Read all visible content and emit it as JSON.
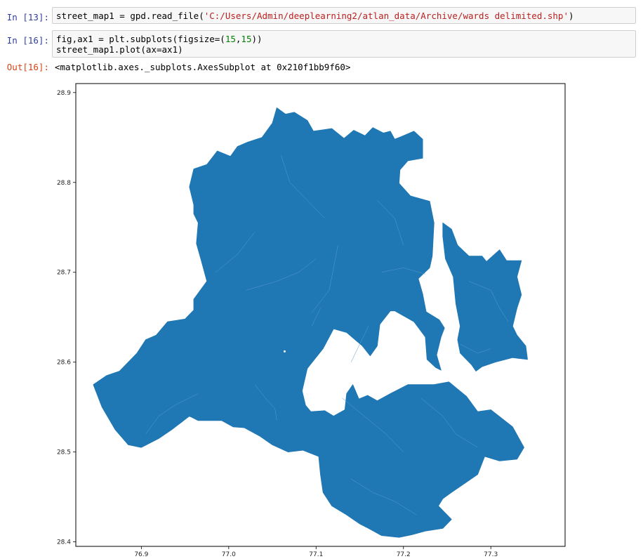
{
  "cells": [
    {
      "in_prompt": "In [13]:",
      "code_parts": [
        {
          "text": "street_map1 = gpd.read_file(",
          "type": "plain"
        },
        {
          "text": "'C:/Users/Admin/deeplearning2/atlan_data/Archive/wards delimited.shp'",
          "type": "string"
        },
        {
          "text": ")",
          "type": "plain"
        }
      ]
    },
    {
      "in_prompt": "In [16]:",
      "line1_parts": [
        {
          "text": "fig,ax1 = plt.subplots(figsize=(",
          "type": "plain"
        },
        {
          "text": "15",
          "type": "number"
        },
        {
          "text": ",",
          "type": "plain"
        },
        {
          "text": "15",
          "type": "number"
        },
        {
          "text": "))",
          "type": "plain"
        }
      ],
      "line2": "street_map1.plot(ax=ax1)",
      "out_prompt": "Out[16]:",
      "output_text": "<matplotlib.axes._subplots.AxesSubplot at 0x210f1bb9f60>"
    }
  ],
  "chart_data": {
    "type": "map",
    "title": "",
    "xlabel": "",
    "ylabel": "",
    "xlim": [
      76.825,
      77.385
    ],
    "ylim": [
      28.395,
      28.91
    ],
    "x_ticks": [
      "76.9",
      "77.0",
      "77.1",
      "77.2",
      "77.3"
    ],
    "y_ticks": [
      "28.9",
      "28.8",
      "28.7",
      "28.6",
      "28.5",
      "28.4"
    ],
    "fill_color": "#1f77b4",
    "edge_color": "#5b9bd0",
    "grid": false,
    "legend": "none",
    "regions": [
      {
        "name": "main",
        "coords": [
          [
            77.055,
            28.883
          ],
          [
            77.065,
            28.876
          ],
          [
            77.075,
            28.878
          ],
          [
            77.09,
            28.869
          ],
          [
            77.097,
            28.857
          ],
          [
            77.118,
            28.86
          ],
          [
            77.132,
            28.849
          ],
          [
            77.143,
            28.858
          ],
          [
            77.156,
            28.852
          ],
          [
            77.165,
            28.861
          ],
          [
            77.177,
            28.855
          ],
          [
            77.185,
            28.857
          ],
          [
            77.19,
            28.848
          ],
          [
            77.2,
            28.852
          ],
          [
            77.212,
            28.857
          ],
          [
            77.222,
            28.848
          ],
          [
            77.222,
            28.827
          ],
          [
            77.205,
            28.824
          ],
          [
            77.196,
            28.814
          ],
          [
            77.195,
            28.799
          ],
          [
            77.208,
            28.785
          ],
          [
            77.23,
            28.779
          ],
          [
            77.235,
            28.755
          ],
          [
            77.233,
            28.718
          ],
          [
            77.23,
            28.705
          ],
          [
            77.217,
            28.693
          ],
          [
            77.222,
            28.676
          ],
          [
            77.226,
            28.656
          ],
          [
            77.241,
            28.647
          ],
          [
            77.247,
            28.638
          ],
          [
            77.243,
            28.628
          ],
          [
            77.238,
            28.608
          ],
          [
            77.243,
            28.591
          ],
          [
            77.237,
            28.594
          ],
          [
            77.227,
            28.603
          ],
          [
            77.225,
            28.628
          ],
          [
            77.212,
            28.645
          ],
          [
            77.19,
            28.657
          ],
          [
            77.185,
            28.657
          ],
          [
            77.173,
            28.642
          ],
          [
            77.17,
            28.618
          ],
          [
            77.162,
            28.607
          ],
          [
            77.153,
            28.618
          ],
          [
            77.135,
            28.633
          ],
          [
            77.12,
            28.637
          ],
          [
            77.108,
            28.615
          ],
          [
            77.09,
            28.593
          ],
          [
            77.084,
            28.568
          ],
          [
            77.088,
            28.552
          ],
          [
            77.094,
            28.545
          ],
          [
            77.11,
            28.546
          ],
          [
            77.12,
            28.54
          ],
          [
            77.133,
            28.547
          ],
          [
            77.135,
            28.565
          ],
          [
            77.142,
            28.575
          ],
          [
            77.149,
            28.559
          ],
          [
            77.159,
            28.563
          ],
          [
            77.17,
            28.557
          ],
          [
            77.185,
            28.565
          ],
          [
            77.205,
            28.575
          ],
          [
            77.225,
            28.575
          ],
          [
            77.235,
            28.575
          ],
          [
            77.252,
            28.578
          ],
          [
            77.272,
            28.562
          ],
          [
            77.285,
            28.545
          ],
          [
            77.3,
            28.547
          ],
          [
            77.325,
            28.528
          ],
          [
            77.338,
            28.505
          ],
          [
            77.33,
            28.492
          ],
          [
            77.31,
            28.49
          ],
          [
            77.293,
            28.495
          ],
          [
            77.285,
            28.475
          ],
          [
            77.27,
            28.465
          ],
          [
            77.255,
            28.455
          ],
          [
            77.245,
            28.448
          ],
          [
            77.24,
            28.44
          ],
          [
            77.25,
            28.43
          ],
          [
            77.255,
            28.425
          ],
          [
            77.245,
            28.415
          ],
          [
            77.225,
            28.412
          ],
          [
            77.21,
            28.408
          ],
          [
            77.195,
            28.405
          ],
          [
            77.175,
            28.407
          ],
          [
            77.16,
            28.415
          ],
          [
            77.15,
            28.42
          ],
          [
            77.135,
            28.43
          ],
          [
            77.118,
            28.44
          ],
          [
            77.108,
            28.455
          ],
          [
            77.105,
            28.475
          ],
          [
            77.103,
            28.495
          ],
          [
            77.085,
            28.502
          ],
          [
            77.068,
            28.5
          ],
          [
            77.05,
            28.508
          ],
          [
            77.035,
            28.518
          ],
          [
            77.018,
            28.527
          ],
          [
            77.005,
            28.528
          ],
          [
            76.992,
            28.535
          ],
          [
            76.965,
            28.535
          ],
          [
            76.955,
            28.54
          ],
          [
            76.935,
            28.525
          ],
          [
            76.92,
            28.515
          ],
          [
            76.91,
            28.51
          ],
          [
            76.9,
            28.505
          ],
          [
            76.885,
            28.508
          ],
          [
            76.87,
            28.525
          ],
          [
            76.855,
            28.55
          ],
          [
            76.845,
            28.575
          ],
          [
            76.86,
            28.585
          ],
          [
            76.875,
            28.59
          ],
          [
            76.895,
            28.61
          ],
          [
            76.905,
            28.625
          ],
          [
            76.917,
            28.63
          ],
          [
            76.93,
            28.645
          ],
          [
            76.95,
            28.648
          ],
          [
            76.96,
            28.658
          ],
          [
            76.96,
            28.67
          ],
          [
            76.975,
            28.69
          ],
          [
            76.968,
            28.715
          ],
          [
            76.963,
            28.732
          ],
          [
            76.965,
            28.755
          ],
          [
            76.96,
            28.765
          ],
          [
            76.96,
            28.775
          ],
          [
            76.955,
            28.795
          ],
          [
            76.96,
            28.815
          ],
          [
            76.975,
            28.82
          ],
          [
            76.987,
            28.835
          ],
          [
            77.002,
            28.829
          ],
          [
            77.01,
            28.84
          ],
          [
            77.022,
            28.845
          ],
          [
            77.038,
            28.85
          ],
          [
            77.05,
            28.866
          ]
        ]
      },
      {
        "name": "east",
        "coords": [
          [
            77.245,
            28.755
          ],
          [
            77.255,
            28.748
          ],
          [
            77.262,
            28.73
          ],
          [
            77.275,
            28.718
          ],
          [
            77.29,
            28.718
          ],
          [
            77.295,
            28.712
          ],
          [
            77.31,
            28.725
          ],
          [
            77.318,
            28.713
          ],
          [
            77.335,
            28.713
          ],
          [
            77.33,
            28.695
          ],
          [
            77.335,
            28.675
          ],
          [
            77.33,
            28.66
          ],
          [
            77.325,
            28.64
          ],
          [
            77.33,
            28.63
          ],
          [
            77.34,
            28.618
          ],
          [
            77.342,
            28.603
          ],
          [
            77.325,
            28.605
          ],
          [
            77.305,
            28.6
          ],
          [
            77.29,
            28.595
          ],
          [
            77.283,
            28.59
          ],
          [
            77.278,
            28.597
          ],
          [
            77.265,
            28.61
          ],
          [
            77.262,
            28.625
          ],
          [
            77.265,
            28.64
          ],
          [
            77.26,
            28.665
          ],
          [
            77.257,
            28.695
          ],
          [
            77.248,
            28.715
          ],
          [
            77.245,
            28.74
          ]
        ]
      }
    ],
    "inner_boundaries": [
      [
        [
          77.03,
          28.575
        ],
        [
          77.042,
          28.56
        ],
        [
          77.053,
          28.548
        ],
        [
          77.055,
          28.535
        ]
      ],
      [
        [
          76.905,
          28.52
        ],
        [
          76.92,
          28.54
        ],
        [
          76.94,
          28.553
        ],
        [
          76.965,
          28.565
        ]
      ],
      [
        [
          77.095,
          28.655
        ],
        [
          77.115,
          28.68
        ],
        [
          77.12,
          28.705
        ],
        [
          77.125,
          28.73
        ]
      ],
      [
        [
          77.095,
          28.64
        ],
        [
          77.105,
          28.66
        ]
      ],
      [
        [
          77.175,
          28.7
        ],
        [
          77.2,
          28.705
        ],
        [
          77.225,
          28.698
        ]
      ],
      [
        [
          77.13,
          28.56
        ],
        [
          77.155,
          28.54
        ],
        [
          77.18,
          28.52
        ],
        [
          77.2,
          28.5
        ]
      ],
      [
        [
          77.22,
          28.56
        ],
        [
          77.245,
          28.54
        ],
        [
          77.26,
          28.52
        ],
        [
          77.285,
          28.505
        ]
      ],
      [
        [
          77.275,
          28.69
        ],
        [
          77.3,
          28.68
        ],
        [
          77.31,
          28.66
        ],
        [
          77.32,
          28.645
        ]
      ],
      [
        [
          77.02,
          28.68
        ],
        [
          77.055,
          28.69
        ],
        [
          77.08,
          28.7
        ],
        [
          77.1,
          28.715
        ]
      ],
      [
        [
          77.17,
          28.78
        ],
        [
          77.19,
          28.76
        ],
        [
          77.2,
          28.73
        ]
      ],
      [
        [
          77.14,
          28.47
        ],
        [
          77.165,
          28.455
        ],
        [
          77.19,
          28.445
        ],
        [
          77.215,
          28.43
        ]
      ],
      [
        [
          77.06,
          28.83
        ],
        [
          77.07,
          28.8
        ],
        [
          77.09,
          28.78
        ],
        [
          77.11,
          28.76
        ]
      ],
      [
        [
          76.985,
          28.7
        ],
        [
          77.01,
          28.72
        ],
        [
          77.03,
          28.745
        ]
      ],
      [
        [
          77.14,
          28.6
        ],
        [
          77.15,
          28.62
        ],
        [
          77.16,
          28.64
        ]
      ],
      [
        [
          77.265,
          28.62
        ],
        [
          77.285,
          28.61
        ],
        [
          77.3,
          28.615
        ]
      ]
    ],
    "hole_dots": [
      [
        77.064,
        28.612
      ]
    ]
  }
}
